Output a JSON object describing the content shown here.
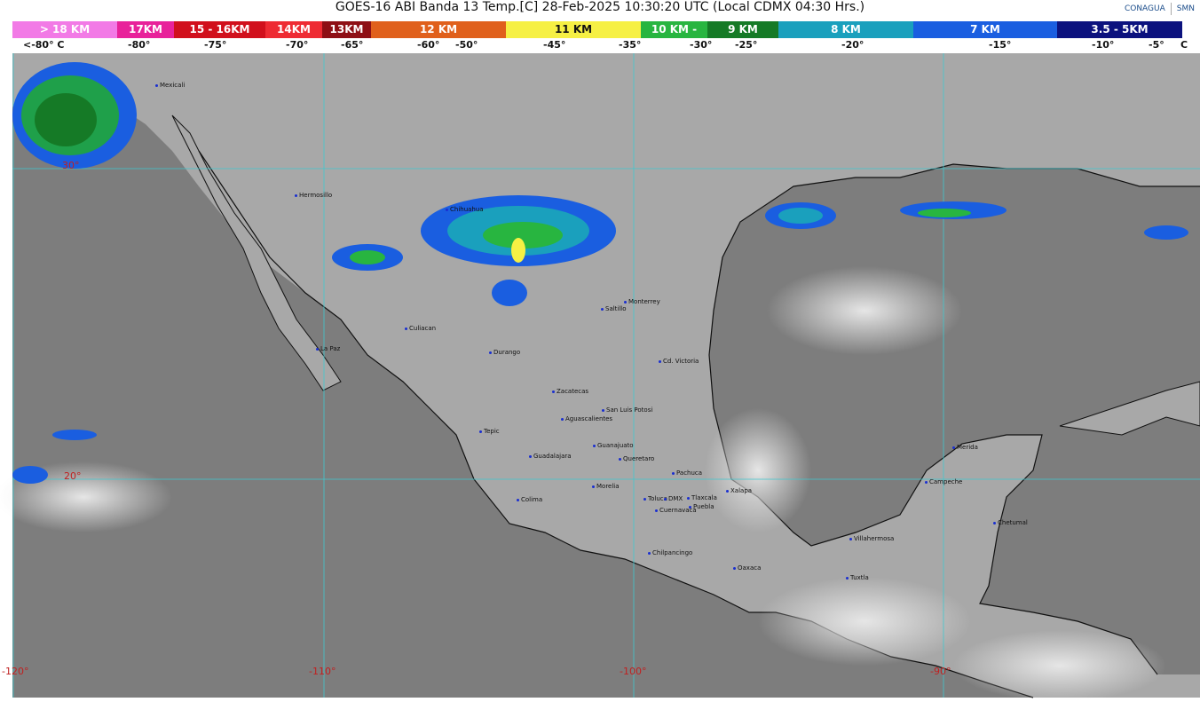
{
  "title": "GOES-16 ABI Banda 13 Temp.[C] 28-Feb-2025 10:30:20 UTC (Local CDMX  04:30 Hrs.)",
  "logos": [
    "CONAGUA",
    "SMN"
  ],
  "scale": [
    {
      "label": "> 18 KM",
      "color": "#f27ae6",
      "w": 118
    },
    {
      "label": "17KM",
      "color": "#e8229a",
      "w": 64
    },
    {
      "label": "15 - 16KM",
      "color": "#d1101c",
      "w": 103
    },
    {
      "label": "14KM",
      "color": "#ee2b33",
      "w": 64
    },
    {
      "label": "13KM",
      "color": "#8e0f15",
      "w": 55
    },
    {
      "label": "12 KM",
      "color": "#e0601c",
      "w": 152
    },
    {
      "label": "11 KM",
      "color": "#f6f044",
      "w": 152
    },
    {
      "label": "10 KM -",
      "color": "#28b540",
      "w": 75
    },
    {
      "label": "9 KM",
      "color": "#157a26",
      "w": 80
    },
    {
      "label": "8 KM",
      "color": "#1aa0bd",
      "w": 152
    },
    {
      "label": "7 KM",
      "color": "#1a5ee0",
      "w": 162
    },
    {
      "label": "3.5 - 5KM",
      "color": "#0c127e",
      "w": 141
    }
  ],
  "temps": [
    "<-80° C",
    "-80°",
    "-75°",
    "-70°",
    "-65°",
    "-60°",
    "-50°",
    "-45°",
    "-35°",
    "-30°",
    "-25°",
    "-20°",
    "-15°",
    "-10°",
    "-5°",
    "C"
  ],
  "grid": {
    "lon_labels": [
      "-120°",
      "-110°",
      "-100°",
      "-90°"
    ],
    "lat_labels": [
      "30°",
      "20°"
    ]
  },
  "cities": [
    "Mexicali",
    "Hermosillo",
    "Chihuahua",
    "La Paz",
    "Culiacan",
    "Durango",
    "Saltillo",
    "Monterrey",
    "Cd. Victoria",
    "Zacatecas",
    "San Luis Potosi",
    "Aguascalientes",
    "Tepic",
    "Guanajuato",
    "Guadalajara",
    "Queretaro",
    "Pachuca",
    "Morelia",
    "Xalapa",
    "Colima",
    "Toluca",
    "DMX",
    "Tlaxcala",
    "Puebla",
    "Cuernavaca",
    "Chilpancingo",
    "Oaxaca",
    "Villahermosa",
    "Tuxtla",
    "Campeche",
    "Merida",
    "Chetumal"
  ]
}
